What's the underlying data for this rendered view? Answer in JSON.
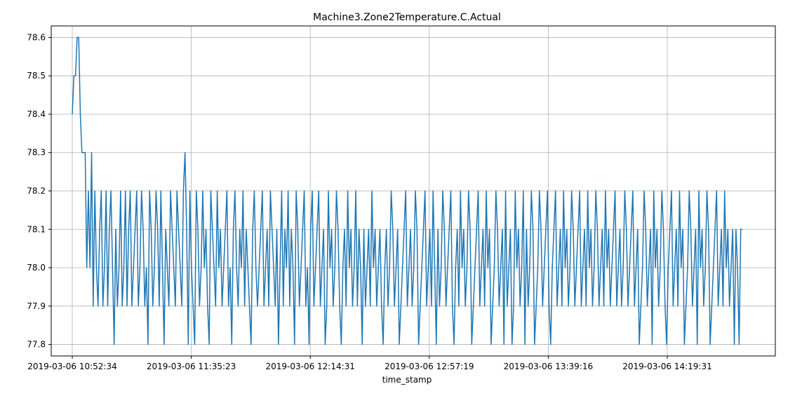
{
  "chart_data": {
    "type": "line",
    "title": "Machine3.Zone2Temperature.C.Actual",
    "xlabel": "time_stamp",
    "ylabel": "",
    "grid": true,
    "ylim": [
      77.77,
      78.63
    ],
    "yticks": [
      77.8,
      77.9,
      78.0,
      78.1,
      78.2,
      78.3,
      78.4,
      78.5,
      78.6
    ],
    "xticks": [
      "2019-03-06 10:52:34",
      "2019-03-06 11:35:23",
      "2019-03-06 12:14:31",
      "2019-03-06 12:57:19",
      "2019-03-06 13:39:16",
      "2019-03-06 14:19:31"
    ],
    "series_color": "#1f77b4",
    "series": [
      {
        "values": [
          78.4,
          78.5,
          78.5,
          78.6,
          78.6,
          78.4,
          78.3,
          78.3,
          78.3,
          78.0,
          78.2,
          78.0,
          78.3,
          77.9,
          78.2,
          78.0,
          77.9,
          78.1,
          78.2,
          77.9,
          78.0,
          78.2,
          77.9,
          78.1,
          78.2,
          78.0,
          77.8,
          78.1,
          77.9,
          78.0,
          78.2,
          77.9,
          78.0,
          78.2,
          77.9,
          78.1,
          78.2,
          77.9,
          78.0,
          78.1,
          78.2,
          77.9,
          78.0,
          78.2,
          78.1,
          77.9,
          78.0,
          77.8,
          78.2,
          78.1,
          77.9,
          78.0,
          78.2,
          78.1,
          77.9,
          78.2,
          78.0,
          77.8,
          78.1,
          78.0,
          77.9,
          78.2,
          78.1,
          78.0,
          77.9,
          78.2,
          78.1,
          78.0,
          77.9,
          78.2,
          78.3,
          78.1,
          77.8,
          78.2,
          78.0,
          77.9,
          77.8,
          78.2,
          78.1,
          77.9,
          78.0,
          78.2,
          78.0,
          78.1,
          77.9,
          77.8,
          78.2,
          78.1,
          78.0,
          77.9,
          78.2,
          78.0,
          78.1,
          77.9,
          78.0,
          78.1,
          78.2,
          77.9,
          78.0,
          77.8,
          78.1,
          78.2,
          78.0,
          77.9,
          78.1,
          78.0,
          78.2,
          77.9,
          78.1,
          78.0,
          77.9,
          77.8,
          78.1,
          78.2,
          78.0,
          77.9,
          78.0,
          78.1,
          78.2,
          77.9,
          78.0,
          78.1,
          77.9,
          78.2,
          78.1,
          78.0,
          77.9,
          78.1,
          77.8,
          78.0,
          78.2,
          77.9,
          78.1,
          78.0,
          78.2,
          77.9,
          78.1,
          78.0,
          77.8,
          78.2,
          78.1,
          77.9,
          78.0,
          78.1,
          78.2,
          77.9,
          78.0,
          77.8,
          78.1,
          78.2,
          77.9,
          78.0,
          78.1,
          78.2,
          77.9,
          78.0,
          78.1,
          77.8,
          77.9,
          78.2,
          78.0,
          78.1,
          77.9,
          78.0,
          78.2,
          78.1,
          77.9,
          77.8,
          78.0,
          78.1,
          77.9,
          78.2,
          78.0,
          78.1,
          77.9,
          78.0,
          78.2,
          77.9,
          78.1,
          78.0,
          77.8,
          78.1,
          77.9,
          78.0,
          78.1,
          77.9,
          78.2,
          78.0,
          78.1,
          77.9,
          78.0,
          78.1,
          77.9,
          77.8,
          78.0,
          78.1,
          77.9,
          78.0,
          78.2,
          78.1,
          77.9,
          78.0,
          78.1,
          77.8,
          77.9,
          78.0,
          78.1,
          78.2,
          77.9,
          78.0,
          78.1,
          77.9,
          78.0,
          78.2,
          78.1,
          77.8,
          77.9,
          78.0,
          78.1,
          78.2,
          77.9,
          78.0,
          78.1,
          77.9,
          78.2,
          78.0,
          77.8,
          78.1,
          77.9,
          78.0,
          78.2,
          78.1,
          77.9,
          78.0,
          78.1,
          78.2,
          77.9,
          77.8,
          78.0,
          78.1,
          77.9,
          78.2,
          78.0,
          78.1,
          77.9,
          78.0,
          78.2,
          78.1,
          77.8,
          77.9,
          78.0,
          78.1,
          78.2,
          77.9,
          78.0,
          78.1,
          77.9,
          78.2,
          78.0,
          78.1,
          77.8,
          77.9,
          78.0,
          78.2,
          78.1,
          77.9,
          78.0,
          78.1,
          77.8,
          78.2,
          77.9,
          78.0,
          78.1,
          77.8,
          77.9,
          78.2,
          78.0,
          78.1,
          77.9,
          78.0,
          78.2,
          77.8,
          78.1,
          77.9,
          78.0,
          78.2,
          78.1,
          77.8,
          77.9,
          78.0,
          78.2,
          78.1,
          77.9,
          78.0,
          78.1,
          78.2,
          77.9,
          77.8,
          78.0,
          78.1,
          78.2,
          77.9,
          78.0,
          78.1,
          77.9,
          78.2,
          78.0,
          78.1,
          77.9,
          78.0,
          78.2,
          78.1,
          77.9,
          78.0,
          78.1,
          78.2,
          77.9,
          78.0,
          78.1,
          77.9,
          78.2,
          78.0,
          78.1,
          77.9,
          78.0,
          78.2,
          78.1,
          77.9,
          78.0,
          78.1,
          77.9,
          78.2,
          78.0,
          78.1,
          77.9,
          78.0,
          78.1,
          78.2,
          77.9,
          78.0,
          78.1,
          77.9,
          78.0,
          78.2,
          78.1,
          77.9,
          78.0,
          78.1,
          78.2,
          77.9,
          78.0,
          78.1,
          77.8,
          77.9,
          78.0,
          78.2,
          78.1,
          77.9,
          78.0,
          78.1,
          77.8,
          78.2,
          78.0,
          78.1,
          77.9,
          78.0,
          78.2,
          78.1,
          77.9,
          77.8,
          78.0,
          78.1,
          78.2,
          77.9,
          78.0,
          78.1,
          77.9,
          78.2,
          78.0,
          78.1,
          77.8,
          77.9,
          78.0,
          78.2,
          78.1,
          77.9,
          78.0,
          78.1,
          77.8,
          78.2,
          78.0,
          78.1,
          77.9,
          78.0,
          78.2,
          78.1,
          77.8,
          77.9,
          78.0,
          78.1,
          78.2,
          77.9,
          78.0,
          78.1,
          77.9,
          78.2,
          78.0,
          78.1,
          77.9,
          78.0,
          78.1,
          77.8,
          78.1,
          78.0,
          77.8,
          78.1,
          78.1
        ]
      }
    ]
  }
}
